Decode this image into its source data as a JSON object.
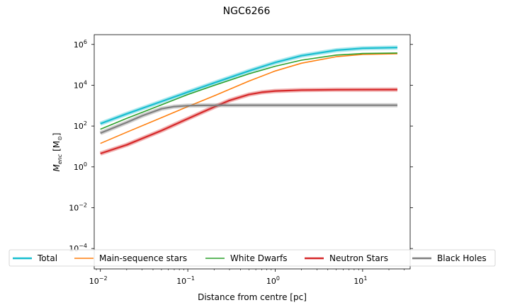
{
  "chart_data": {
    "type": "line",
    "title": "NGC6266",
    "xlabel": "Distance from centre [pc]",
    "ylabel": "M_enc [M_⊙]",
    "xscale": "log",
    "yscale": "log",
    "xlim": [
      0.0085,
      35
    ],
    "ylim": [
      1e-05,
      3000000
    ],
    "x_ticks": [
      {
        "value": 0.01,
        "base": "10",
        "exp": "−2"
      },
      {
        "value": 0.1,
        "base": "10",
        "exp": "−1"
      },
      {
        "value": 1,
        "base": "10",
        "exp": "0"
      },
      {
        "value": 10,
        "base": "10",
        "exp": "1"
      }
    ],
    "y_ticks": [
      {
        "value": 0.0001,
        "base": "10",
        "exp": "−4"
      },
      {
        "value": 0.01,
        "base": "10",
        "exp": "−2"
      },
      {
        "value": 1,
        "base": "10",
        "exp": "0"
      },
      {
        "value": 100,
        "base": "10",
        "exp": "2"
      },
      {
        "value": 10000,
        "base": "10",
        "exp": "4"
      },
      {
        "value": 1000000,
        "base": "10",
        "exp": "6"
      }
    ],
    "legend_position": "bottom, spanning width",
    "grid": false,
    "series": [
      {
        "name": "Total",
        "color": "#17becf",
        "band": true,
        "x": [
          0.01,
          0.02,
          0.05,
          0.1,
          0.2,
          0.5,
          1,
          2,
          5,
          10,
          25
        ],
        "y": [
          130,
          400,
          1600,
          4600,
          13000,
          50000,
          130000,
          280000,
          520000,
          650000,
          700000
        ]
      },
      {
        "name": "Main-sequence stars",
        "color": "#ff7f0e",
        "band": false,
        "x": [
          0.01,
          0.02,
          0.05,
          0.1,
          0.2,
          0.5,
          1,
          2,
          5,
          10,
          25
        ],
        "y": [
          14,
          50,
          260,
          900,
          3000,
          16000,
          50000,
          120000,
          250000,
          320000,
          350000
        ]
      },
      {
        "name": "White Dwarfs",
        "color": "#2ca02c",
        "band": false,
        "x": [
          0.01,
          0.02,
          0.05,
          0.1,
          0.2,
          0.5,
          1,
          2,
          5,
          10,
          25
        ],
        "y": [
          70,
          240,
          1100,
          3500,
          9800,
          36000,
          85000,
          170000,
          300000,
          360000,
          380000
        ]
      },
      {
        "name": "Neutron Stars",
        "color": "#d62728",
        "band": true,
        "x": [
          0.01,
          0.02,
          0.05,
          0.1,
          0.15,
          0.2,
          0.3,
          0.5,
          0.7,
          1,
          2,
          5,
          10,
          25
        ],
        "y": [
          4.5,
          12,
          60,
          230,
          500,
          850,
          1800,
          3500,
          4500,
          5200,
          5800,
          6000,
          6050,
          6100
        ]
      },
      {
        "name": "Black Holes",
        "color": "#7f7f7f",
        "band": true,
        "x": [
          0.01,
          0.02,
          0.03,
          0.05,
          0.07,
          0.1,
          0.15,
          0.2,
          0.5,
          1,
          5,
          25
        ],
        "y": [
          45,
          150,
          320,
          700,
          900,
          1000,
          1030,
          1040,
          1050,
          1050,
          1050,
          1050
        ]
      }
    ]
  }
}
